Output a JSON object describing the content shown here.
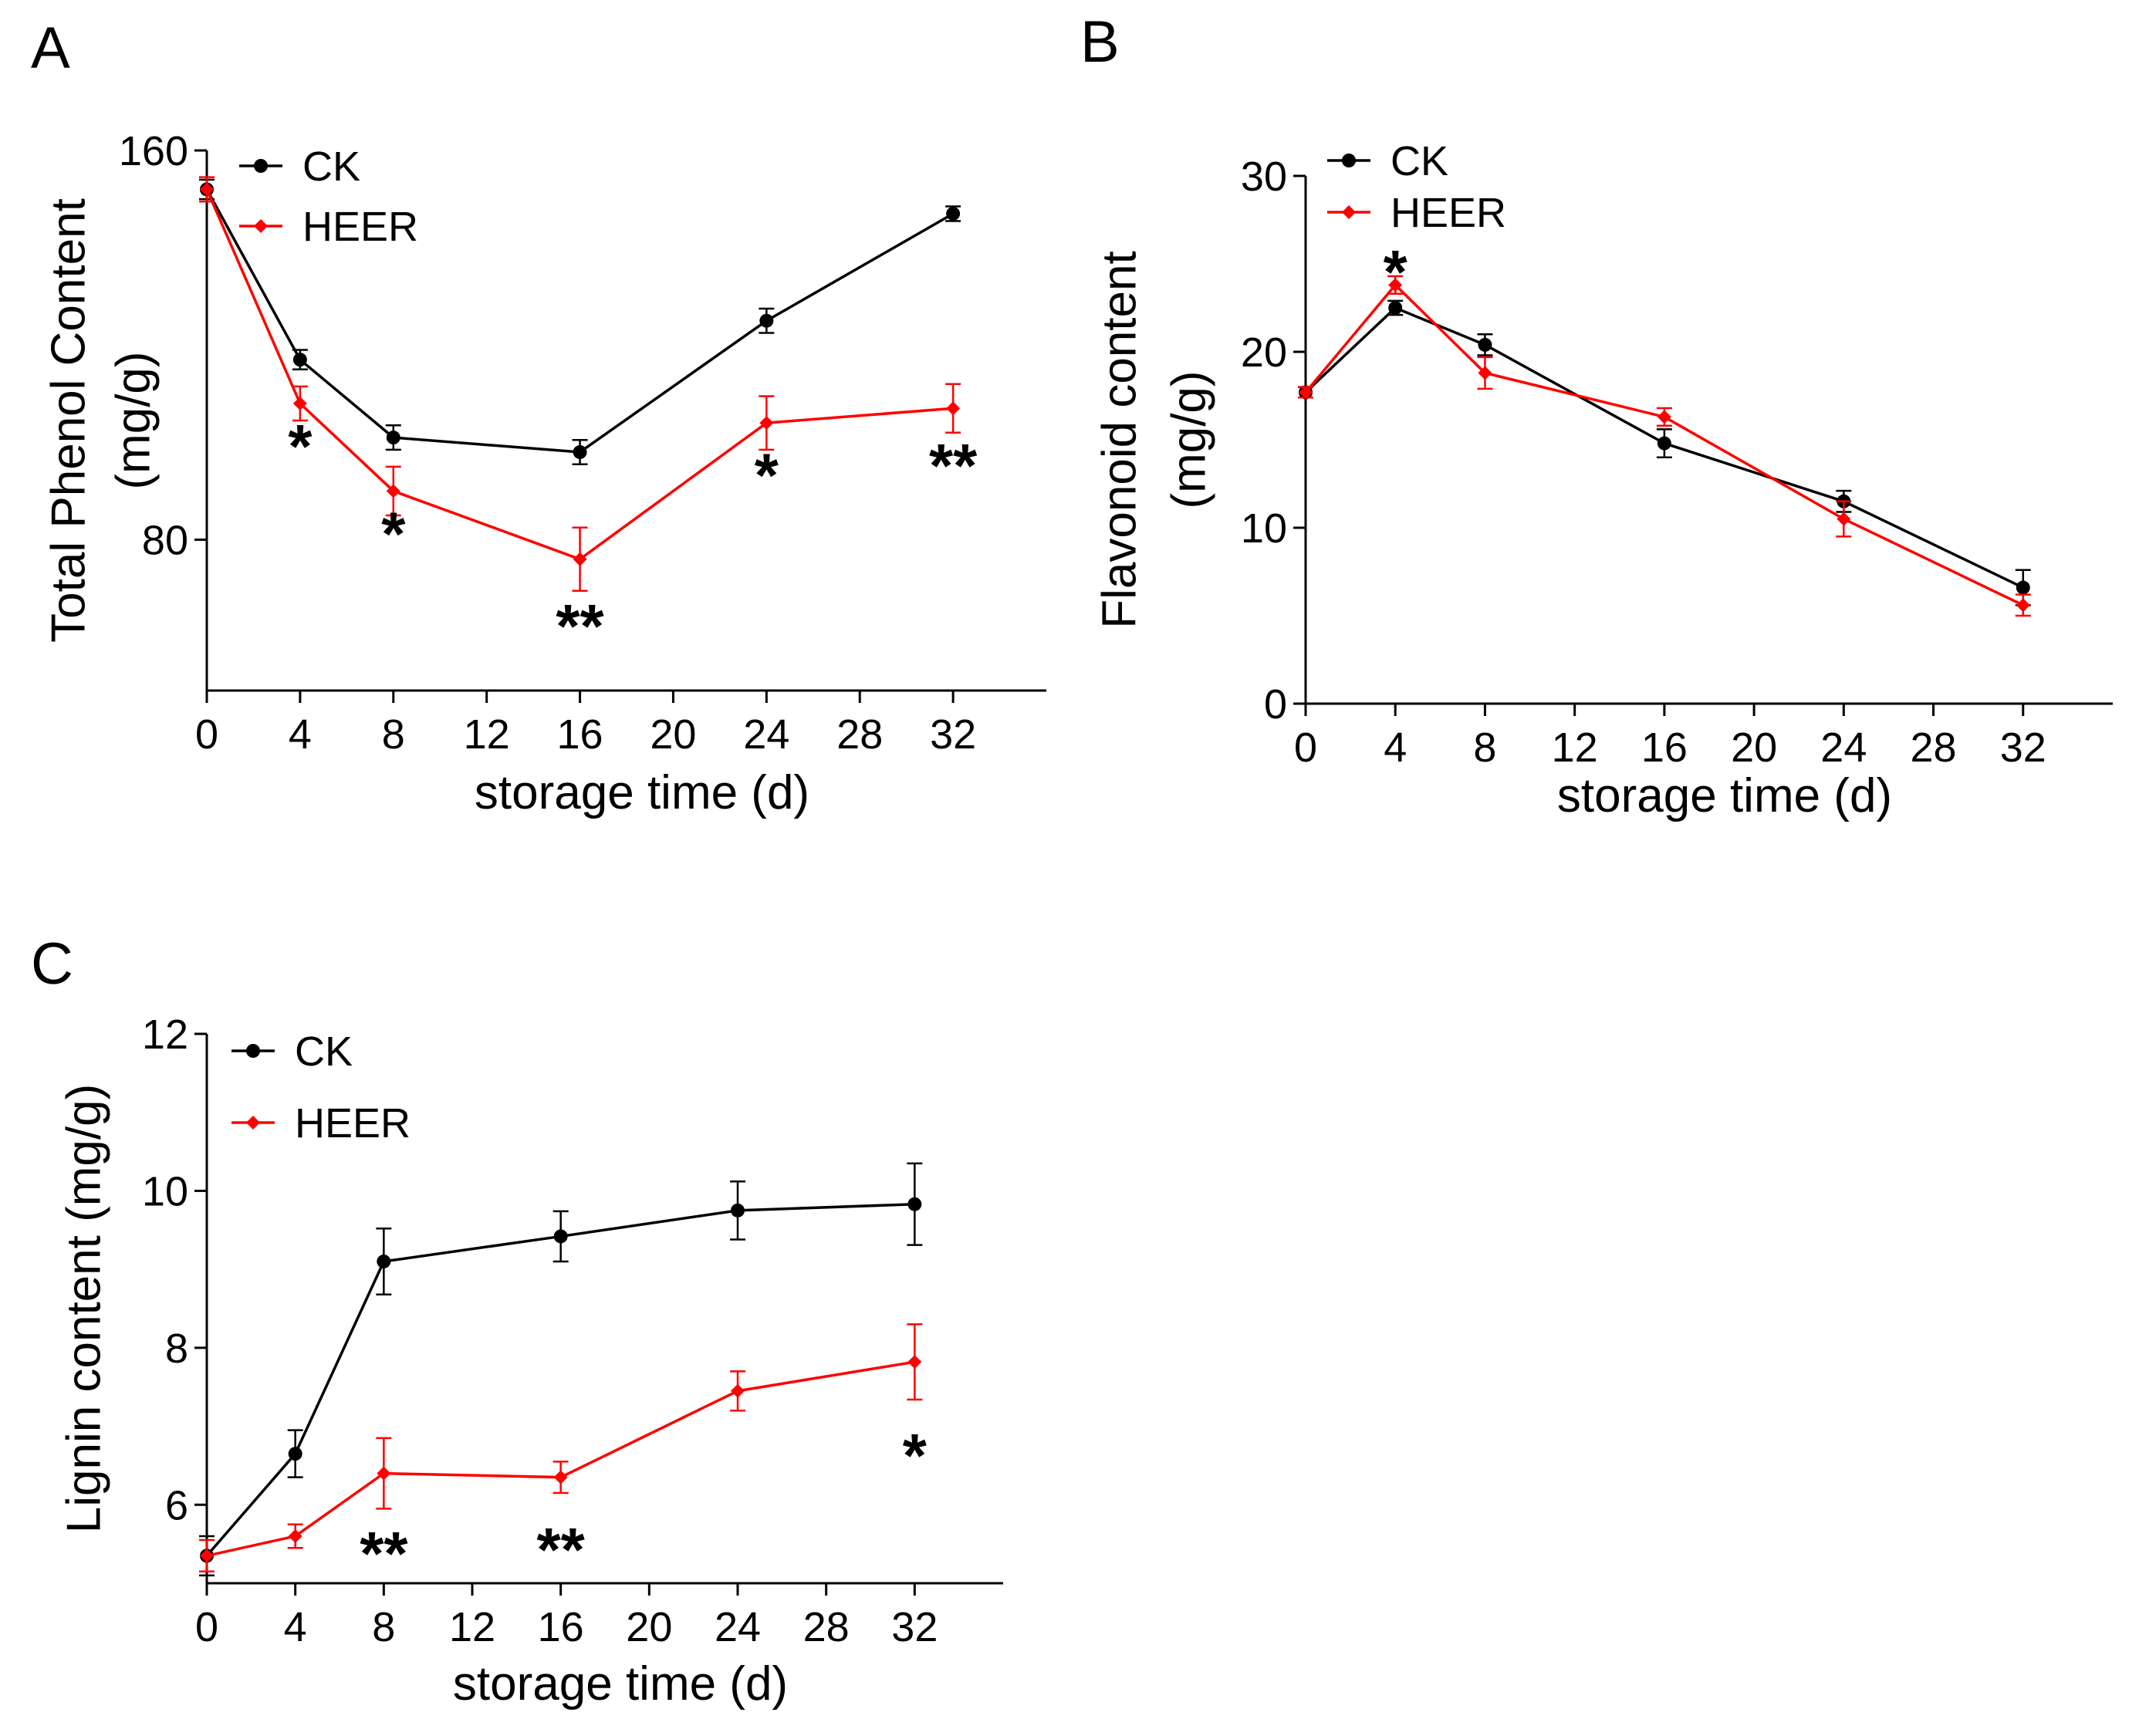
{
  "chart_data": [
    {
      "panel": "A",
      "type": "line",
      "title": "",
      "xlabel": "storage time (d)",
      "ylabel_lines": [
        "Total Phenol Content",
        "(mg/g)"
      ],
      "x_ticks": [
        0,
        4,
        8,
        12,
        16,
        20,
        24,
        28,
        32
      ],
      "x_ticks_labels": [
        "0",
        "4",
        "8",
        "12",
        "16",
        "20",
        "24",
        "28",
        "32"
      ],
      "xlim": [
        0,
        36
      ],
      "x_positions": [
        0,
        4,
        8,
        16,
        24,
        32
      ],
      "y_ticks": [
        80,
        160
      ],
      "y_ticks_labels": [
        "80",
        "160"
      ],
      "ylim": [
        49,
        160
      ],
      "grid": false,
      "legend_position": "top-left",
      "series": [
        {
          "name": "CK",
          "color": "#000000",
          "marker": "circle",
          "values": [
            152,
            117,
            101,
            98,
            125,
            147
          ],
          "errors": [
            2,
            2,
            2.5,
            2.5,
            2.5,
            1.5
          ]
        },
        {
          "name": "HEER",
          "color": "#ff0000",
          "marker": "diamond",
          "values": [
            152,
            108,
            90,
            76,
            104,
            107
          ],
          "errors": [
            2.5,
            3.5,
            5,
            6.5,
            5.5,
            5
          ]
        }
      ],
      "annotations": [
        {
          "text": "*",
          "x": 4,
          "y": 102
        },
        {
          "text": "*",
          "x": 8,
          "y": 84
        },
        {
          "text": "**",
          "x": 16,
          "y": 65
        },
        {
          "text": "*",
          "x": 24,
          "y": 96
        },
        {
          "text": "**",
          "x": 32,
          "y": 98
        }
      ]
    },
    {
      "panel": "B",
      "type": "line",
      "title": "",
      "xlabel": "storage time (d)",
      "ylabel_lines": [
        "Flavonoid content",
        "(mg/g)"
      ],
      "x_ticks": [
        0,
        4,
        8,
        12,
        16,
        20,
        24,
        28,
        32
      ],
      "x_ticks_labels": [
        "0",
        "4",
        "8",
        "12",
        "16",
        "20",
        "24",
        "28",
        "32"
      ],
      "xlim": [
        0,
        36
      ],
      "x_positions": [
        0,
        4,
        8,
        16,
        24,
        32
      ],
      "y_ticks": [
        0,
        10,
        20,
        30
      ],
      "y_ticks_labels": [
        "0",
        "10",
        "20",
        "30"
      ],
      "ylim": [
        0,
        30
      ],
      "grid": false,
      "legend_position": "top-left",
      "series": [
        {
          "name": "CK",
          "color": "#000000",
          "marker": "circle",
          "values": [
            17.7,
            22.5,
            20.4,
            14.8,
            11.5,
            6.6
          ],
          "errors": [
            0.3,
            0.4,
            0.6,
            0.8,
            0.6,
            1.0
          ]
        },
        {
          "name": "HEER",
          "color": "#ff0000",
          "marker": "diamond",
          "values": [
            17.7,
            23.8,
            18.8,
            16.3,
            10.5,
            5.6
          ],
          "errors": [
            0.3,
            0.5,
            0.9,
            0.5,
            1.0,
            0.6
          ]
        }
      ],
      "annotations": [
        {
          "text": "*",
          "x": 4,
          "y": 25.3
        }
      ]
    },
    {
      "panel": "C",
      "type": "line",
      "title": "",
      "xlabel": "storage time (d)",
      "ylabel_lines": [
        "Lignin content (mg/g)"
      ],
      "x_ticks": [
        0,
        4,
        8,
        12,
        16,
        20,
        24,
        28,
        32
      ],
      "x_ticks_labels": [
        "0",
        "4",
        "8",
        "12",
        "16",
        "20",
        "24",
        "28",
        "32"
      ],
      "xlim": [
        0,
        36
      ],
      "x_positions": [
        0,
        4,
        8,
        16,
        24,
        32
      ],
      "y_ticks": [
        6,
        8,
        10,
        12
      ],
      "y_ticks_labels": [
        "6",
        "8",
        "10",
        "12"
      ],
      "ylim": [
        5,
        12
      ],
      "grid": false,
      "legend_position": "top-left",
      "series": [
        {
          "name": "CK",
          "color": "#000000",
          "marker": "circle",
          "values": [
            5.35,
            6.65,
            9.1,
            9.42,
            9.75,
            9.83
          ],
          "errors": [
            0.25,
            0.3,
            0.42,
            0.32,
            0.37,
            0.52
          ]
        },
        {
          "name": "HEER",
          "color": "#ff0000",
          "marker": "diamond",
          "values": [
            5.35,
            5.6,
            6.4,
            6.35,
            7.45,
            7.82
          ],
          "errors": [
            0.2,
            0.15,
            0.45,
            0.2,
            0.25,
            0.48
          ]
        }
      ],
      "annotations": [
        {
          "text": "**",
          "x": 8,
          "y": 5.55
        },
        {
          "text": "**",
          "x": 16,
          "y": 5.6
        },
        {
          "text": "*",
          "x": 32,
          "y": 6.8
        }
      ]
    }
  ]
}
